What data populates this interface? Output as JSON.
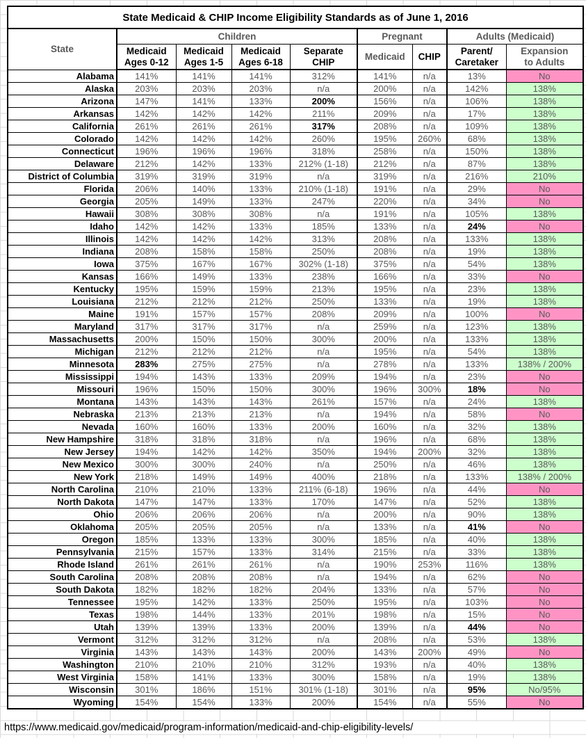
{
  "title": "State Medicaid & CHIP Income Eligibility Standards as of June 1, 2016",
  "columns": {
    "state_label": "State",
    "groups": [
      {
        "label": "Children",
        "span": 4
      },
      {
        "label": "Pregnant",
        "span": 2
      },
      {
        "label": "Adults (Medicaid)",
        "span": 2
      }
    ],
    "sub": [
      {
        "key": "medicaid-ages-0-12",
        "label": "Medicaid\nAges 0-12",
        "muted": false
      },
      {
        "key": "medicaid-ages-1-5",
        "label": "Medicaid\nAges 1-5",
        "muted": false
      },
      {
        "key": "medicaid-ages-6-18",
        "label": "Medicaid\nAges 6-18",
        "muted": false
      },
      {
        "key": "separate-chip",
        "label": "Separate\nCHIP",
        "muted": false
      },
      {
        "key": "pregnant-medicaid",
        "label": "Medicaid",
        "muted": true
      },
      {
        "key": "pregnant-chip",
        "label": "CHIP",
        "muted": false
      },
      {
        "key": "parent-caretaker",
        "label": "Parent/\nCaretaker",
        "muted": false
      },
      {
        "key": "expansion-to-adults",
        "label": "Expansion\nto Adults",
        "muted": true
      }
    ]
  },
  "colors": {
    "expansion_yes_green": "#ccffcc",
    "expansion_no_pink": "#ff94c4",
    "muted_text": "#595959",
    "gridline": "#d9d9d9"
  },
  "rows": [
    {
      "state": "Alabama",
      "cells": [
        "141%",
        "141%",
        "141%",
        "312%",
        "141%",
        "n/a",
        "13%",
        "No"
      ],
      "expansion": "pink",
      "bold": []
    },
    {
      "state": "Alaska",
      "cells": [
        "203%",
        "203%",
        "203%",
        "n/a",
        "200%",
        "n/a",
        "142%",
        "138%"
      ],
      "expansion": "green",
      "bold": []
    },
    {
      "state": "Arizona",
      "cells": [
        "147%",
        "141%",
        "133%",
        "200%",
        "156%",
        "n/a",
        "106%",
        "138%"
      ],
      "expansion": "green",
      "bold": [
        3
      ]
    },
    {
      "state": "Arkansas",
      "cells": [
        "142%",
        "142%",
        "142%",
        "211%",
        "209%",
        "n/a",
        "17%",
        "138%"
      ],
      "expansion": "green",
      "bold": []
    },
    {
      "state": "California",
      "cells": [
        "261%",
        "261%",
        "261%",
        "317%",
        "208%",
        "n/a",
        "109%",
        "138%"
      ],
      "expansion": "green",
      "bold": [
        3
      ]
    },
    {
      "state": "Colorado",
      "cells": [
        "142%",
        "142%",
        "142%",
        "260%",
        "195%",
        "260%",
        "68%",
        "138%"
      ],
      "expansion": "green",
      "bold": []
    },
    {
      "state": "Connecticut",
      "cells": [
        "196%",
        "196%",
        "196%",
        "318%",
        "258%",
        "n/a",
        "150%",
        "138%"
      ],
      "expansion": "green",
      "bold": []
    },
    {
      "state": "Delaware",
      "cells": [
        "212%",
        "142%",
        "133%",
        "212% (1-18)",
        "212%",
        "n/a",
        "87%",
        "138%"
      ],
      "expansion": "green",
      "bold": []
    },
    {
      "state": "District of Columbia",
      "cells": [
        "319%",
        "319%",
        "319%",
        "n/a",
        "319%",
        "n/a",
        "216%",
        "210%"
      ],
      "expansion": "green",
      "bold": []
    },
    {
      "state": "Florida",
      "cells": [
        "206%",
        "140%",
        "133%",
        "210% (1-18)",
        "191%",
        "n/a",
        "29%",
        "No"
      ],
      "expansion": "pink",
      "bold": []
    },
    {
      "state": "Georgia",
      "cells": [
        "205%",
        "149%",
        "133%",
        "247%",
        "220%",
        "n/a",
        "34%",
        "No"
      ],
      "expansion": "pink",
      "bold": []
    },
    {
      "state": "Hawaii",
      "cells": [
        "308%",
        "308%",
        "308%",
        "n/a",
        "191%",
        "n/a",
        "105%",
        "138%"
      ],
      "expansion": "green",
      "bold": []
    },
    {
      "state": "Idaho",
      "cells": [
        "142%",
        "142%",
        "133%",
        "185%",
        "133%",
        "n/a",
        "24%",
        "No"
      ],
      "expansion": "pink",
      "bold": [
        6
      ]
    },
    {
      "state": "Illinois",
      "cells": [
        "142%",
        "142%",
        "142%",
        "313%",
        "208%",
        "n/a",
        "133%",
        "138%"
      ],
      "expansion": "green",
      "bold": []
    },
    {
      "state": "Indiana",
      "cells": [
        "208%",
        "158%",
        "158%",
        "250%",
        "208%",
        "n/a",
        "19%",
        "138%"
      ],
      "expansion": "green",
      "bold": []
    },
    {
      "state": "Iowa",
      "cells": [
        "375%",
        "167%",
        "167%",
        "302% (1-18)",
        "375%",
        "n/a",
        "54%",
        "138%"
      ],
      "expansion": "green",
      "bold": []
    },
    {
      "state": "Kansas",
      "cells": [
        "166%",
        "149%",
        "133%",
        "238%",
        "166%",
        "n/a",
        "33%",
        "No"
      ],
      "expansion": "pink",
      "bold": []
    },
    {
      "state": "Kentucky",
      "cells": [
        "195%",
        "159%",
        "159%",
        "213%",
        "195%",
        "n/a",
        "23%",
        "138%"
      ],
      "expansion": "green",
      "bold": []
    },
    {
      "state": "Louisiana",
      "cells": [
        "212%",
        "212%",
        "212%",
        "250%",
        "133%",
        "n/a",
        "19%",
        "138%"
      ],
      "expansion": "green",
      "bold": []
    },
    {
      "state": "Maine",
      "cells": [
        "191%",
        "157%",
        "157%",
        "208%",
        "209%",
        "n/a",
        "100%",
        "No"
      ],
      "expansion": "pink",
      "bold": []
    },
    {
      "state": "Maryland",
      "cells": [
        "317%",
        "317%",
        "317%",
        "n/a",
        "259%",
        "n/a",
        "123%",
        "138%"
      ],
      "expansion": "green",
      "bold": []
    },
    {
      "state": "Massachusetts",
      "cells": [
        "200%",
        "150%",
        "150%",
        "300%",
        "200%",
        "n/a",
        "133%",
        "138%"
      ],
      "expansion": "green",
      "bold": []
    },
    {
      "state": "Michigan",
      "cells": [
        "212%",
        "212%",
        "212%",
        "n/a",
        "195%",
        "n/a",
        "54%",
        "138%"
      ],
      "expansion": "green",
      "bold": []
    },
    {
      "state": "Minnesota",
      "cells": [
        "283%",
        "275%",
        "275%",
        "n/a",
        "278%",
        "n/a",
        "133%",
        "138% / 200%"
      ],
      "expansion": "green",
      "bold": [
        0
      ]
    },
    {
      "state": "Mississippi",
      "cells": [
        "194%",
        "143%",
        "133%",
        "209%",
        "194%",
        "n/a",
        "23%",
        "No"
      ],
      "expansion": "pink",
      "bold": []
    },
    {
      "state": "Missouri",
      "cells": [
        "196%",
        "150%",
        "150%",
        "300%",
        "196%",
        "300%",
        "18%",
        "No"
      ],
      "expansion": "pink",
      "bold": [
        6
      ]
    },
    {
      "state": "Montana",
      "cells": [
        "143%",
        "143%",
        "143%",
        "261%",
        "157%",
        "n/a",
        "24%",
        "138%"
      ],
      "expansion": "green",
      "bold": []
    },
    {
      "state": "Nebraska",
      "cells": [
        "213%",
        "213%",
        "213%",
        "n/a",
        "194%",
        "n/a",
        "58%",
        "No"
      ],
      "expansion": "pink",
      "bold": []
    },
    {
      "state": "Nevada",
      "cells": [
        "160%",
        "160%",
        "133%",
        "200%",
        "160%",
        "n/a",
        "32%",
        "138%"
      ],
      "expansion": "green",
      "bold": []
    },
    {
      "state": "New Hampshire",
      "cells": [
        "318%",
        "318%",
        "318%",
        "n/a",
        "196%",
        "n/a",
        "68%",
        "138%"
      ],
      "expansion": "green",
      "bold": []
    },
    {
      "state": "New Jersey",
      "cells": [
        "194%",
        "142%",
        "142%",
        "350%",
        "194%",
        "200%",
        "32%",
        "138%"
      ],
      "expansion": "green",
      "bold": []
    },
    {
      "state": "New Mexico",
      "cells": [
        "300%",
        "300%",
        "240%",
        "n/a",
        "250%",
        "n/a",
        "46%",
        "138%"
      ],
      "expansion": "green",
      "bold": []
    },
    {
      "state": "New York",
      "cells": [
        "218%",
        "149%",
        "149%",
        "400%",
        "218%",
        "n/a",
        "133%",
        "138% / 200%"
      ],
      "expansion": "green",
      "bold": []
    },
    {
      "state": "North Carolina",
      "cells": [
        "210%",
        "210%",
        "133%",
        "211% (6-18)",
        "196%",
        "n/a",
        "44%",
        "No"
      ],
      "expansion": "pink",
      "bold": []
    },
    {
      "state": "North Dakota",
      "cells": [
        "147%",
        "147%",
        "133%",
        "170%",
        "147%",
        "n/a",
        "52%",
        "138%"
      ],
      "expansion": "green",
      "bold": []
    },
    {
      "state": "Ohio",
      "cells": [
        "206%",
        "206%",
        "206%",
        "n/a",
        "200%",
        "n/a",
        "90%",
        "138%"
      ],
      "expansion": "green",
      "bold": []
    },
    {
      "state": "Oklahoma",
      "cells": [
        "205%",
        "205%",
        "205%",
        "n/a",
        "133%",
        "n/a",
        "41%",
        "No"
      ],
      "expansion": "pink",
      "bold": [
        6
      ]
    },
    {
      "state": "Oregon",
      "cells": [
        "185%",
        "133%",
        "133%",
        "300%",
        "185%",
        "n/a",
        "40%",
        "138%"
      ],
      "expansion": "green",
      "bold": []
    },
    {
      "state": "Pennsylvania",
      "cells": [
        "215%",
        "157%",
        "133%",
        "314%",
        "215%",
        "n/a",
        "33%",
        "138%"
      ],
      "expansion": "green",
      "bold": []
    },
    {
      "state": "Rhode Island",
      "cells": [
        "261%",
        "261%",
        "261%",
        "n/a",
        "190%",
        "253%",
        "116%",
        "138%"
      ],
      "expansion": "green",
      "bold": []
    },
    {
      "state": "South Carolina",
      "cells": [
        "208%",
        "208%",
        "208%",
        "n/a",
        "194%",
        "n/a",
        "62%",
        "No"
      ],
      "expansion": "pink",
      "bold": []
    },
    {
      "state": "South Dakota",
      "cells": [
        "182%",
        "182%",
        "182%",
        "204%",
        "133%",
        "n/a",
        "57%",
        "No"
      ],
      "expansion": "pink",
      "bold": []
    },
    {
      "state": "Tennessee",
      "cells": [
        "195%",
        "142%",
        "133%",
        "250%",
        "195%",
        "n/a",
        "103%",
        "No"
      ],
      "expansion": "pink",
      "bold": []
    },
    {
      "state": "Texas",
      "cells": [
        "198%",
        "144%",
        "133%",
        "201%",
        "198%",
        "n/a",
        "15%",
        "No"
      ],
      "expansion": "pink",
      "bold": []
    },
    {
      "state": "Utah",
      "cells": [
        "139%",
        "139%",
        "133%",
        "200%",
        "139%",
        "n/a",
        "44%",
        "No"
      ],
      "expansion": "pink",
      "bold": [
        6
      ]
    },
    {
      "state": "Vermont",
      "cells": [
        "312%",
        "312%",
        "312%",
        "n/a",
        "208%",
        "n/a",
        "53%",
        "138%"
      ],
      "expansion": "green",
      "bold": []
    },
    {
      "state": "Virginia",
      "cells": [
        "143%",
        "143%",
        "143%",
        "200%",
        "143%",
        "200%",
        "49%",
        "No"
      ],
      "expansion": "pink",
      "bold": []
    },
    {
      "state": "Washington",
      "cells": [
        "210%",
        "210%",
        "210%",
        "312%",
        "193%",
        "n/a",
        "40%",
        "138%"
      ],
      "expansion": "green",
      "bold": []
    },
    {
      "state": "West Virginia",
      "cells": [
        "158%",
        "141%",
        "133%",
        "300%",
        "158%",
        "n/a",
        "19%",
        "138%"
      ],
      "expansion": "green",
      "bold": []
    },
    {
      "state": "Wisconsin",
      "cells": [
        "301%",
        "186%",
        "151%",
        "301% (1-18)",
        "301%",
        "n/a",
        "95%",
        "No/95%"
      ],
      "expansion": "green",
      "bold": [
        6
      ]
    },
    {
      "state": "Wyoming",
      "cells": [
        "154%",
        "154%",
        "133%",
        "200%",
        "154%",
        "n/a",
        "55%",
        "No"
      ],
      "expansion": "pink",
      "bold": []
    }
  ],
  "footer": {
    "url": "https://www.medicaid.gov/medicaid/program-information/medicaid-and-chip-eligibility-levels/"
  }
}
